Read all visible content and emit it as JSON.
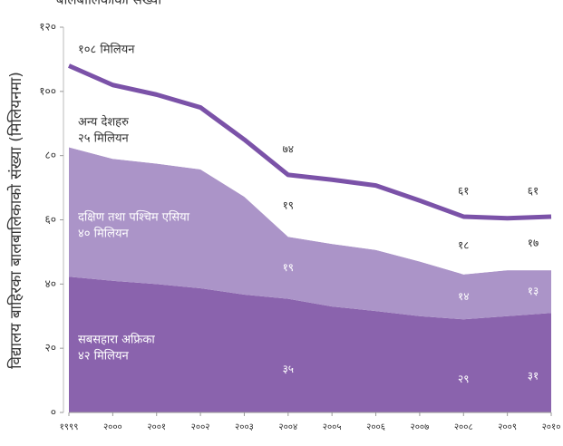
{
  "chart_data": {
    "type": "stacked-area",
    "title": "बालबालिकाको संख्या",
    "y_label": "विद्यालय बाहिरका बालबालिकाको संख्या (मिलियनमा)",
    "categories": [
      "१९९९",
      "२०००",
      "२००१",
      "२००२",
      "२००३",
      "२००४",
      "२००५",
      "२००६",
      "२००७",
      "२००८",
      "२००९",
      "२०१०"
    ],
    "series": [
      {
        "name": "सबसहारा अफ्रिका",
        "color": "#8a63ad",
        "values": [
          42.3,
          41,
          40,
          38.7,
          36.7,
          35.4,
          33,
          31.6,
          30,
          29,
          30,
          31
        ],
        "value_labels": [
          null,
          null,
          null,
          null,
          null,
          "३५",
          null,
          null,
          null,
          "२९",
          null,
          "३१"
        ]
      },
      {
        "name": "दक्षिण तथा पश्चिम एसिया",
        "color": "#ab94c8",
        "values": [
          40.3,
          38,
          37.5,
          37,
          30.5,
          19.3,
          19.5,
          19,
          17,
          14,
          14.3,
          13.3
        ],
        "value_labels": [
          null,
          null,
          null,
          null,
          null,
          "१९",
          null,
          null,
          null,
          "१४",
          null,
          "१३"
        ]
      },
      {
        "name": "अन्य देशहरु",
        "color": "#ffffff",
        "values": [
          25.4,
          23,
          21.5,
          19.3,
          17.8,
          19.3,
          20,
          20.1,
          19,
          18,
          16.2,
          16.7
        ],
        "value_labels": [
          null,
          null,
          null,
          null,
          null,
          "१९",
          null,
          null,
          null,
          "१८",
          null,
          "१७"
        ]
      }
    ],
    "line_color": "#7b52a8",
    "total_labels": [
      null,
      null,
      null,
      null,
      null,
      "७४",
      null,
      null,
      null,
      "६१",
      null,
      "६१"
    ],
    "annotations": [
      {
        "lines": [
          "१०८ मिलियन"
        ]
      },
      {
        "lines": [
          "अन्य देशहरु",
          "२५ मिलियन"
        ]
      },
      {
        "lines": [
          "दक्षिण तथा पश्चिम एसिया",
          "४० मिलियन"
        ]
      },
      {
        "lines": [
          "सबसहारा अफ्रिका",
          "४२ मिलियन"
        ]
      }
    ],
    "ylim": [
      0,
      120
    ],
    "yticks": [
      {
        "value": 0,
        "label": "०"
      },
      {
        "value": 20,
        "label": "२०"
      },
      {
        "value": 40,
        "label": "४०"
      },
      {
        "value": 60,
        "label": "६०"
      },
      {
        "value": 80,
        "label": "८०"
      },
      {
        "value": 100,
        "label": "१००"
      },
      {
        "value": 120,
        "label": "१२०"
      }
    ],
    "grid": false
  }
}
